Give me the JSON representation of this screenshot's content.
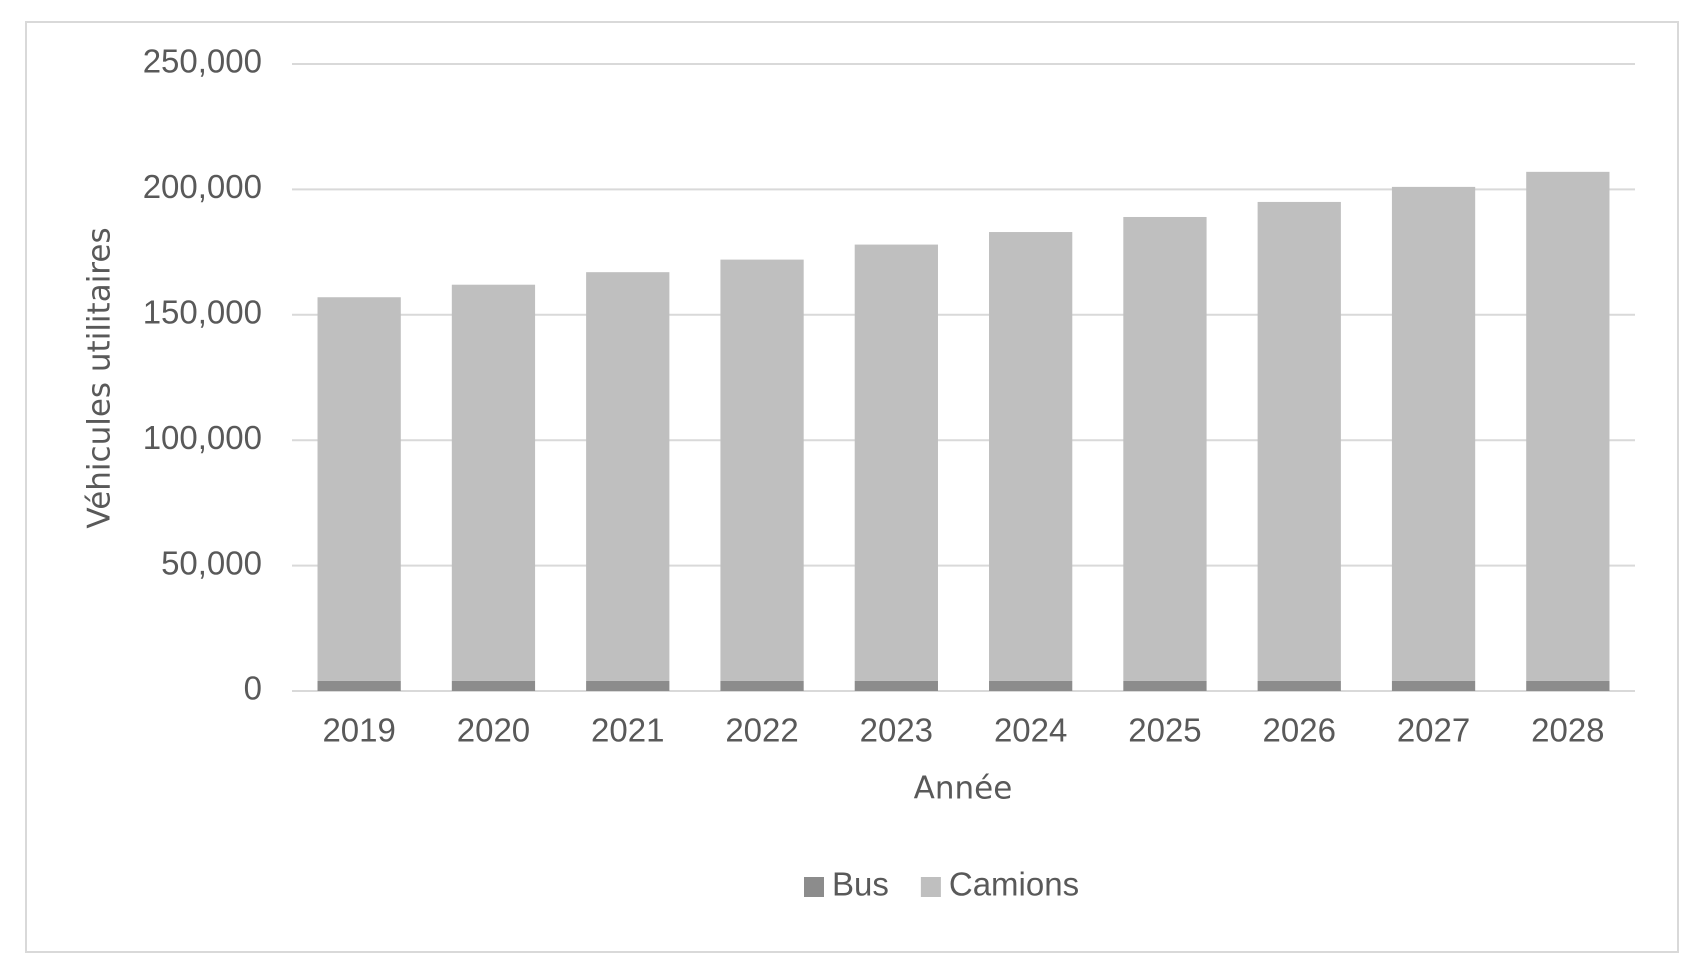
{
  "chart_data": {
    "type": "stacked_bar",
    "x_label": "Année",
    "y_label": "Véhicules utilitaires",
    "categories": [
      "2019",
      "2020",
      "2021",
      "2022",
      "2023",
      "2024",
      "2025",
      "2026",
      "2027",
      "2028"
    ],
    "series": [
      {
        "name": "Bus",
        "color": "#8c8c8c",
        "values": [
          4000,
          4000,
          4000,
          4000,
          4000,
          4000,
          4000,
          4000,
          4000,
          4000
        ]
      },
      {
        "name": "Camions",
        "color": "#bfbfbf",
        "values": [
          153000,
          158000,
          163000,
          168000,
          174000,
          179000,
          185000,
          191000,
          197000,
          203000
        ]
      }
    ],
    "ylim": [
      0,
      250000
    ],
    "yticks": [
      0,
      {
        "value": 50000,
        "label": "50,000"
      },
      {
        "value": 100000,
        "label": "100,000"
      },
      {
        "value": 150000,
        "label": "150,000"
      },
      {
        "value": 200000,
        "label": "200,000"
      },
      {
        "value": 250000,
        "label": "250,000"
      }
    ],
    "grid": true,
    "legend": "bottom"
  }
}
